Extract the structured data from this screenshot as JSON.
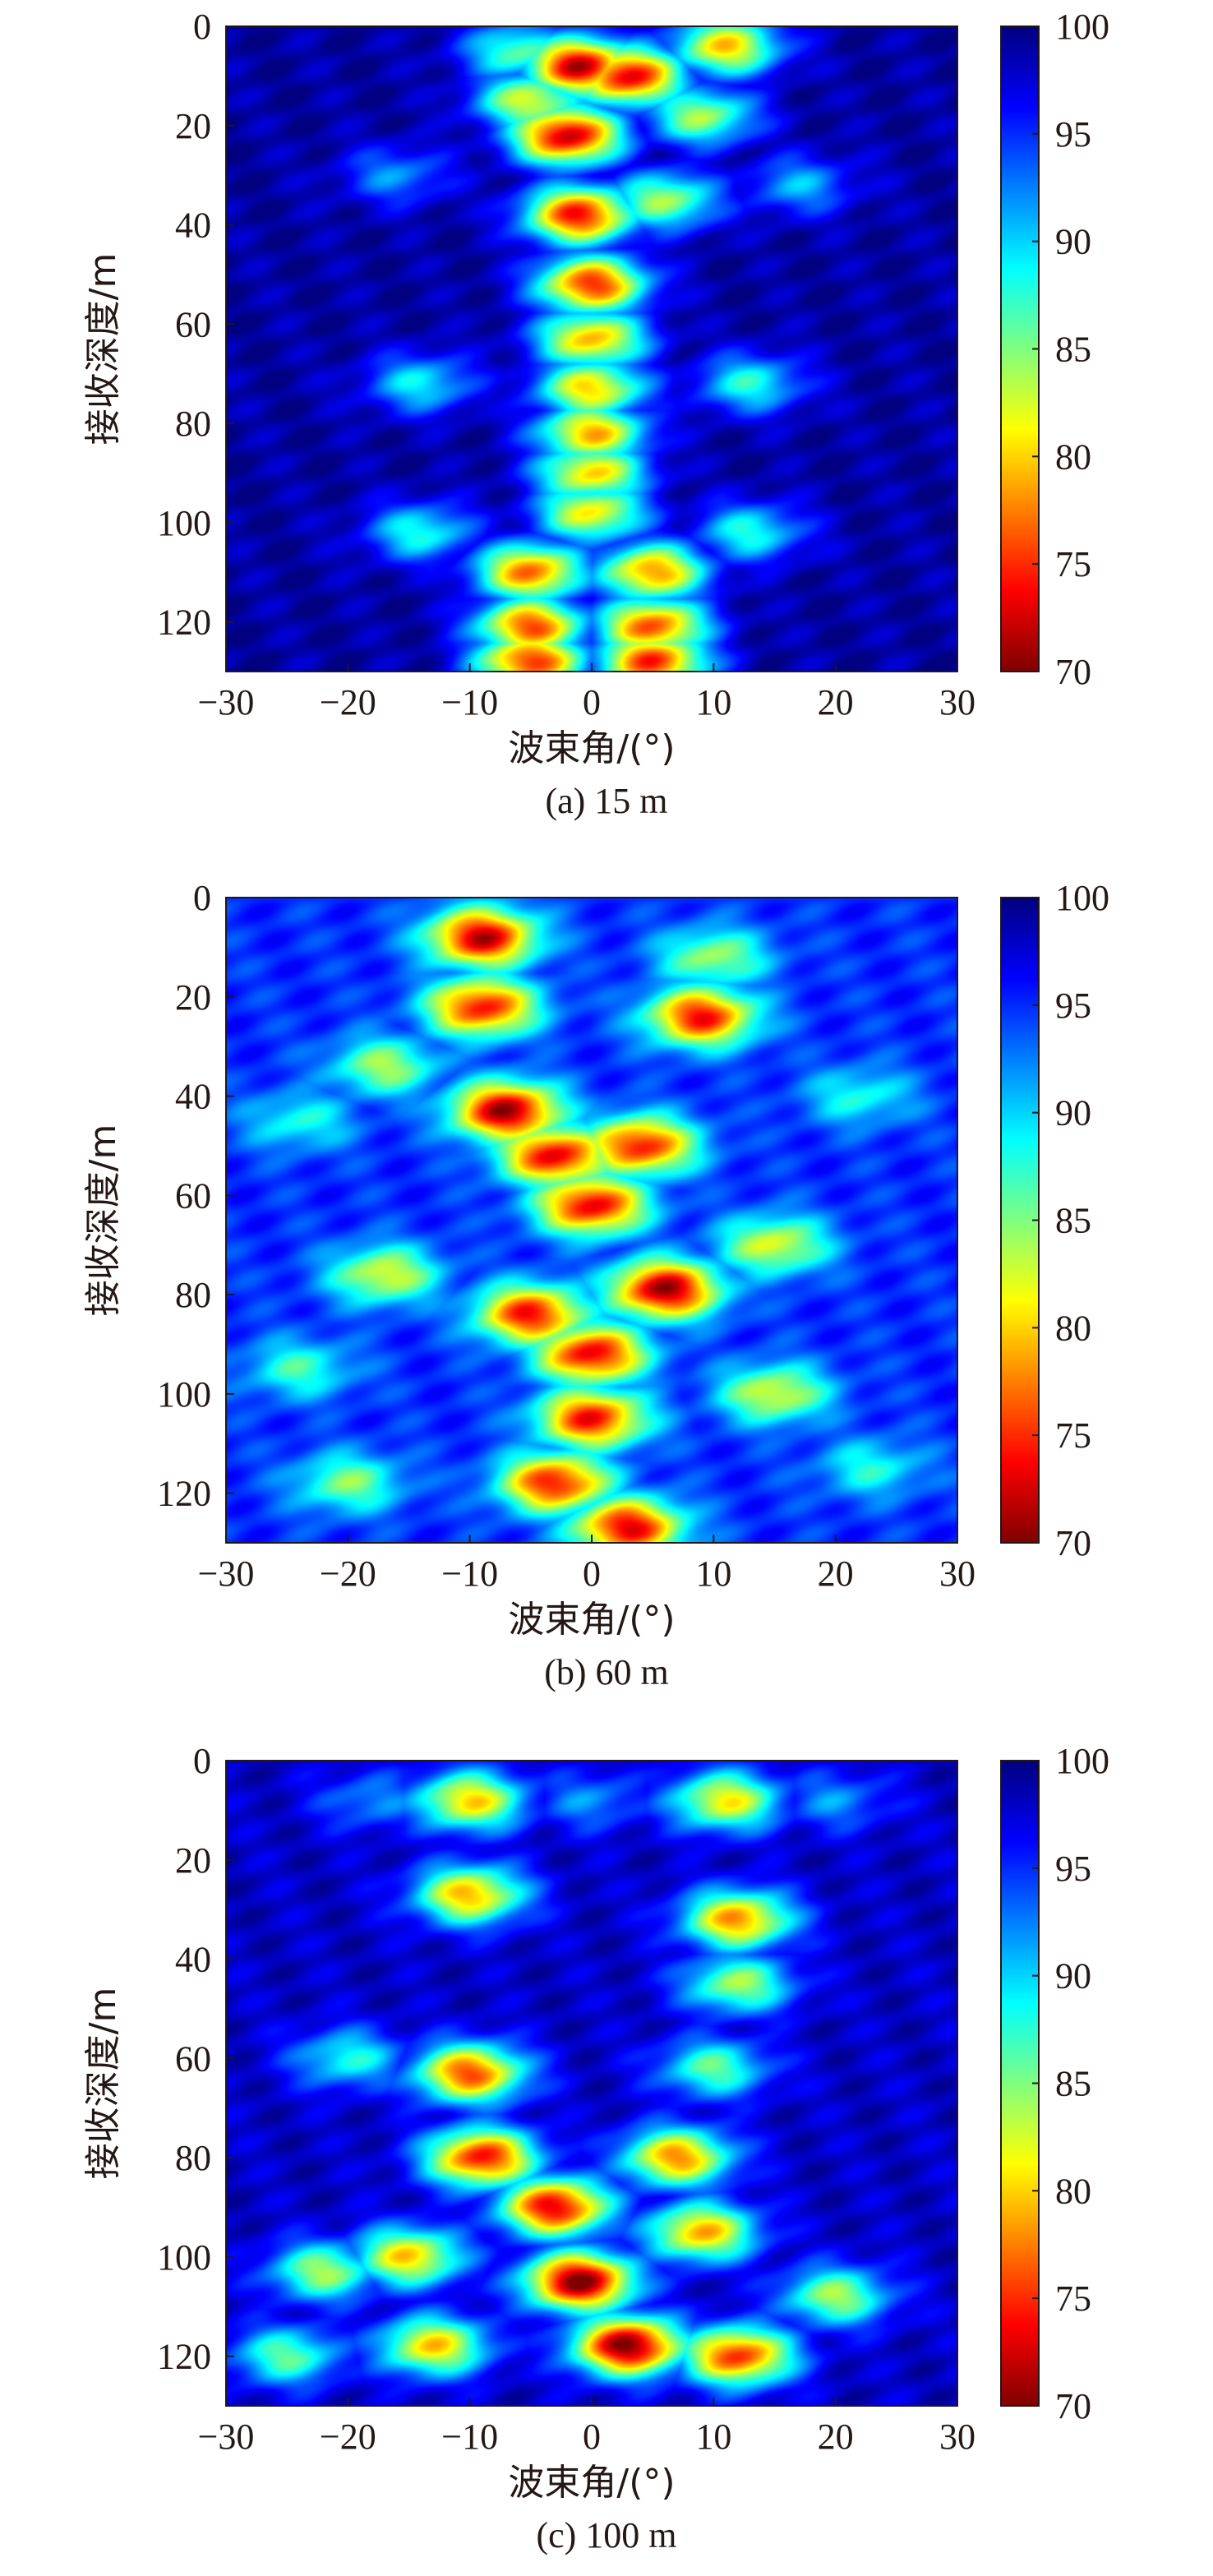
{
  "chart_data": [
    {
      "type": "heatmap",
      "caption": "(a) 15 m",
      "xlabel": "波束角/(°)",
      "ylabel": "接收深度/m",
      "xlim": [
        -30,
        30
      ],
      "ylim": [
        0,
        130
      ],
      "y_reversed": true,
      "xticks": [
        -30,
        -20,
        -10,
        0,
        10,
        20,
        30
      ],
      "xtick_labels": [
        "−30",
        "−20",
        "−10",
        "0",
        "10",
        "20",
        "30"
      ],
      "yticks": [
        0,
        20,
        40,
        60,
        80,
        100,
        120
      ],
      "ytick_labels": [
        "0",
        "20",
        "40",
        "60",
        "80",
        "100",
        "120"
      ],
      "colorbar": {
        "min": 70,
        "max": 100,
        "ticks": [
          70,
          75,
          80,
          85,
          90,
          95,
          100
        ],
        "colormap": "jet"
      },
      "background": 99,
      "hotspots": [
        {
          "x": -1,
          "y": 8,
          "value": 72
        },
        {
          "x": 3,
          "y": 10,
          "value": 73
        },
        {
          "x": -2,
          "y": 22,
          "value": 72
        },
        {
          "x": 11,
          "y": 4,
          "value": 80
        },
        {
          "x": -6,
          "y": 5,
          "value": 86
        },
        {
          "x": -5,
          "y": 15,
          "value": 82
        },
        {
          "x": 9,
          "y": 18,
          "value": 84
        },
        {
          "x": -1,
          "y": 38,
          "value": 74
        },
        {
          "x": 6,
          "y": 35,
          "value": 84
        },
        {
          "x": 0,
          "y": 52,
          "value": 75
        },
        {
          "x": 0,
          "y": 63,
          "value": 79
        },
        {
          "x": 0,
          "y": 73,
          "value": 80
        },
        {
          "x": 0,
          "y": 82,
          "value": 79
        },
        {
          "x": 0,
          "y": 90,
          "value": 80
        },
        {
          "x": 0,
          "y": 98,
          "value": 81
        },
        {
          "x": -5,
          "y": 110,
          "value": 77
        },
        {
          "x": 5,
          "y": 110,
          "value": 78
        },
        {
          "x": -5,
          "y": 121,
          "value": 76
        },
        {
          "x": 5,
          "y": 121,
          "value": 76
        },
        {
          "x": -5,
          "y": 128,
          "value": 75
        },
        {
          "x": 5,
          "y": 128,
          "value": 75
        },
        {
          "x": -14,
          "y": 72,
          "value": 89
        },
        {
          "x": 13,
          "y": 72,
          "value": 88
        },
        {
          "x": -14,
          "y": 102,
          "value": 88
        },
        {
          "x": 13,
          "y": 102,
          "value": 88
        },
        {
          "x": -16,
          "y": 30,
          "value": 92
        },
        {
          "x": 17,
          "y": 32,
          "value": 91
        }
      ]
    },
    {
      "type": "heatmap",
      "caption": "(b) 60 m",
      "xlabel": "波束角/(°)",
      "ylabel": "接收深度/m",
      "xlim": [
        -30,
        30
      ],
      "ylim": [
        0,
        130
      ],
      "y_reversed": true,
      "xticks": [
        -30,
        -20,
        -10,
        0,
        10,
        20,
        30
      ],
      "xtick_labels": [
        "−30",
        "−20",
        "−10",
        "0",
        "10",
        "20",
        "30"
      ],
      "yticks": [
        0,
        20,
        40,
        60,
        80,
        100,
        120
      ],
      "ytick_labels": [
        "0",
        "20",
        "40",
        "60",
        "80",
        "100",
        "120"
      ],
      "colorbar": {
        "min": 70,
        "max": 100,
        "ticks": [
          70,
          75,
          80,
          85,
          90,
          95,
          100
        ],
        "colormap": "jet"
      },
      "background": 95,
      "hotspots": [
        {
          "x": -9,
          "y": 8,
          "value": 72
        },
        {
          "x": -9,
          "y": 22,
          "value": 74
        },
        {
          "x": 9,
          "y": 24,
          "value": 74
        },
        {
          "x": 10,
          "y": 12,
          "value": 84
        },
        {
          "x": -7,
          "y": 43,
          "value": 71
        },
        {
          "x": -3,
          "y": 52,
          "value": 73
        },
        {
          "x": 4,
          "y": 50,
          "value": 74
        },
        {
          "x": 0,
          "y": 62,
          "value": 73
        },
        {
          "x": 6,
          "y": 79,
          "value": 71
        },
        {
          "x": -5,
          "y": 84,
          "value": 74
        },
        {
          "x": 0,
          "y": 92,
          "value": 73
        },
        {
          "x": 0,
          "y": 105,
          "value": 74
        },
        {
          "x": -3,
          "y": 118,
          "value": 74
        },
        {
          "x": 3,
          "y": 127,
          "value": 73
        },
        {
          "x": -17,
          "y": 34,
          "value": 84
        },
        {
          "x": -17,
          "y": 76,
          "value": 82
        },
        {
          "x": 15,
          "y": 70,
          "value": 82
        },
        {
          "x": 15,
          "y": 100,
          "value": 82
        },
        {
          "x": -20,
          "y": 118,
          "value": 85
        },
        {
          "x": -24,
          "y": 45,
          "value": 88
        },
        {
          "x": 22,
          "y": 40,
          "value": 88
        },
        {
          "x": -24,
          "y": 95,
          "value": 87
        },
        {
          "x": 23,
          "y": 115,
          "value": 88
        }
      ]
    },
    {
      "type": "heatmap",
      "caption": "(c) 100 m",
      "xlabel": "波束角/(°)",
      "ylabel": "接收深度/m",
      "xlim": [
        -30,
        30
      ],
      "ylim": [
        0,
        130
      ],
      "y_reversed": true,
      "xticks": [
        -30,
        -20,
        -10,
        0,
        10,
        20,
        30
      ],
      "xtick_labels": [
        "−30",
        "−20",
        "−10",
        "0",
        "10",
        "20",
        "30"
      ],
      "yticks": [
        0,
        20,
        40,
        60,
        80,
        100,
        120
      ],
      "ytick_labels": [
        "0",
        "20",
        "40",
        "60",
        "80",
        "100",
        "120"
      ],
      "colorbar": {
        "min": 70,
        "max": 100,
        "ticks": [
          70,
          75,
          80,
          85,
          90,
          95,
          100
        ],
        "colormap": "jet"
      },
      "background": 98,
      "hotspots": [
        {
          "x": -10,
          "y": 8,
          "value": 80
        },
        {
          "x": 11,
          "y": 8,
          "value": 81
        },
        {
          "x": -10,
          "y": 27,
          "value": 79
        },
        {
          "x": 12,
          "y": 32,
          "value": 78
        },
        {
          "x": 12,
          "y": 45,
          "value": 84
        },
        {
          "x": -10,
          "y": 63,
          "value": 76
        },
        {
          "x": 10,
          "y": 62,
          "value": 86
        },
        {
          "x": -9,
          "y": 80,
          "value": 74
        },
        {
          "x": 7,
          "y": 80,
          "value": 78
        },
        {
          "x": -3,
          "y": 90,
          "value": 73
        },
        {
          "x": -1,
          "y": 105,
          "value": 70
        },
        {
          "x": 3,
          "y": 118,
          "value": 70
        },
        {
          "x": 9,
          "y": 95,
          "value": 79
        },
        {
          "x": -15,
          "y": 100,
          "value": 80
        },
        {
          "x": 12,
          "y": 120,
          "value": 75
        },
        {
          "x": -13,
          "y": 118,
          "value": 80
        },
        {
          "x": -22,
          "y": 103,
          "value": 84
        },
        {
          "x": 20,
          "y": 108,
          "value": 84
        },
        {
          "x": -20,
          "y": 60,
          "value": 88
        },
        {
          "x": -25,
          "y": 120,
          "value": 86
        },
        {
          "x": 0,
          "y": 8,
          "value": 92
        },
        {
          "x": -18,
          "y": 8,
          "value": 92
        },
        {
          "x": 20,
          "y": 8,
          "value": 92
        }
      ]
    }
  ]
}
